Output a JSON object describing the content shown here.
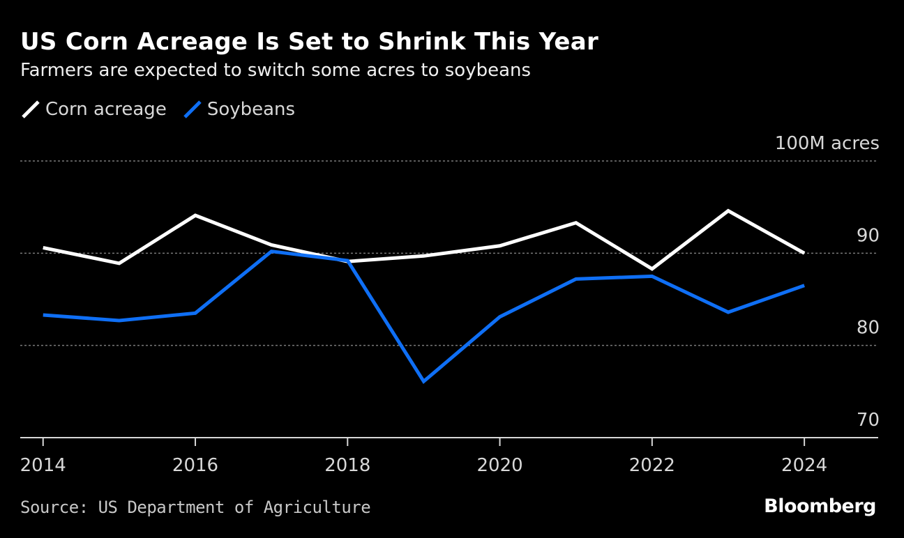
{
  "chart_data": {
    "type": "line",
    "title": "US Corn Acreage Is Set to Shrink This Year",
    "subtitle": "Farmers are expected to switch some acres to soybeans",
    "ylabel": "100M acres",
    "xlabel": "",
    "x": [
      2014,
      2015,
      2016,
      2017,
      2018,
      2019,
      2020,
      2021,
      2022,
      2023,
      2024
    ],
    "x_tick_labels": [
      "2014",
      "2016",
      "2018",
      "2020",
      "2022",
      "2024"
    ],
    "y_tick_labels": [
      "100M acres",
      "90",
      "80",
      "70"
    ],
    "y_ticks": [
      100,
      90,
      80,
      70
    ],
    "ylim": [
      70,
      100
    ],
    "xlim": [
      2013.7,
      2024.97
    ],
    "grid": true,
    "legend_position": "top-left",
    "series": [
      {
        "name": "Corn acreage",
        "color": "#ffffff",
        "values": [
          90.6,
          88.9,
          94.1,
          90.9,
          89.1,
          89.7,
          90.8,
          93.3,
          88.3,
          94.6,
          90.0
        ]
      },
      {
        "name": "Soybeans",
        "color": "#0f6ff5",
        "values": [
          83.3,
          82.7,
          83.5,
          90.2,
          89.2,
          76.1,
          83.1,
          87.2,
          87.5,
          83.6,
          86.5
        ]
      }
    ]
  },
  "header": {
    "title": "US Corn Acreage Is Set to Shrink This Year",
    "subtitle": "Farmers are expected to switch some acres to soybeans"
  },
  "legend": {
    "items": [
      {
        "label": "Corn acreage",
        "color": "#ffffff"
      },
      {
        "label": "Soybeans",
        "color": "#0f6ff5"
      }
    ]
  },
  "footer": {
    "source": "Source: US Department of Agriculture",
    "brand": "Bloomberg"
  }
}
